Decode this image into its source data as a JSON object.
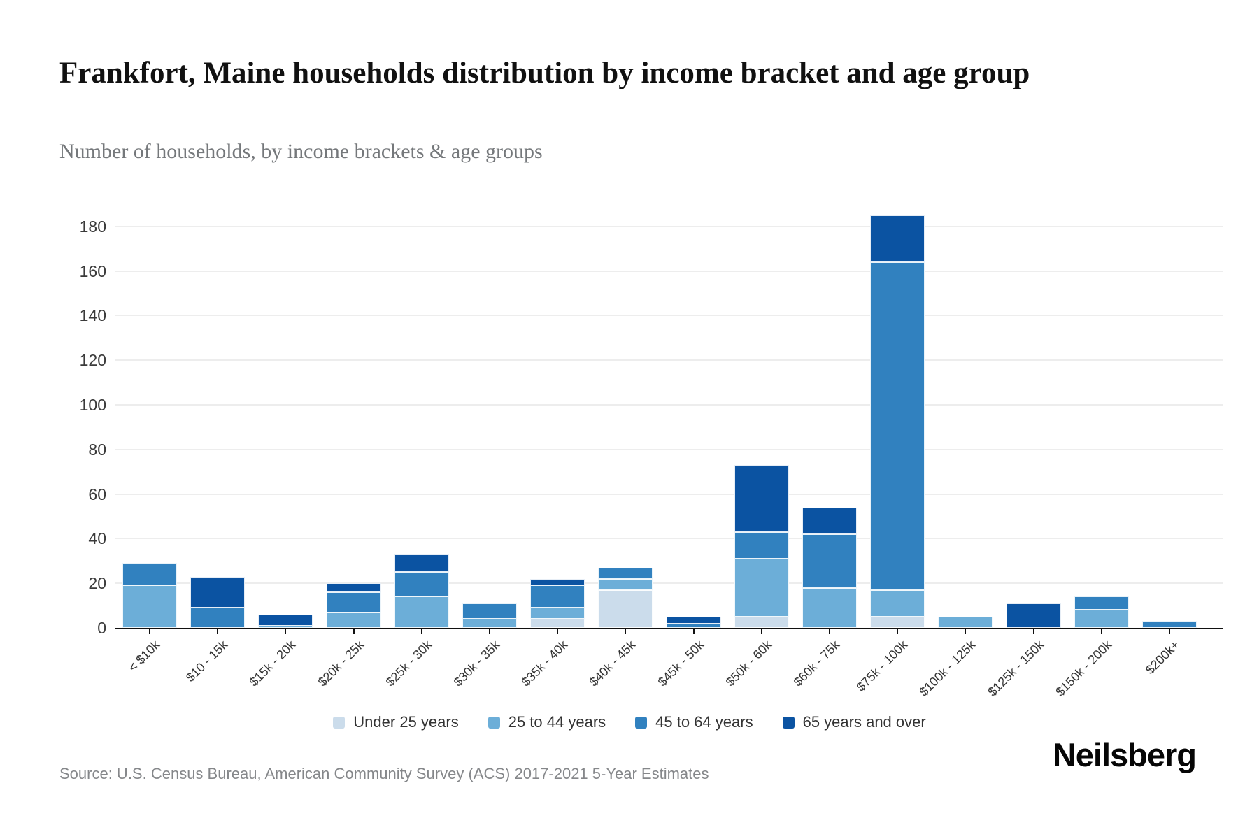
{
  "header": {
    "title": "Frankfort, Maine households distribution by income bracket and age group",
    "subtitle": "Number of households, by income brackets & age groups"
  },
  "chart_data": {
    "type": "bar",
    "stacked": true,
    "title": "Frankfort, Maine households distribution by income bracket and age group",
    "ylabel": "Number of households",
    "xlabel": "Income bracket",
    "ylim": [
      0,
      190
    ],
    "yticks": [
      0,
      20,
      40,
      60,
      80,
      100,
      120,
      140,
      160,
      180
    ],
    "grid": true,
    "legend_position": "bottom",
    "categories": [
      "< $10k",
      "$10 - 15k",
      "$15k - 20k",
      "$20k - 25k",
      "$25k - 30k",
      "$30k - 35k",
      "$35k - 40k",
      "$40k - 45k",
      "$45k - 50k",
      "$50k - 60k",
      "$60k - 75k",
      "$75k - 100k",
      "$100k - 125k",
      "$125k - 150k",
      "$150k - 200k",
      "$200k+"
    ],
    "series": [
      {
        "name": "Under 25 years",
        "color": "#cbdceb",
        "values": [
          0,
          0,
          0,
          0,
          0,
          0,
          4,
          17,
          0,
          5,
          0,
          5,
          0,
          0,
          0,
          0
        ]
      },
      {
        "name": "25 to 44 years",
        "color": "#6caed8",
        "values": [
          19,
          0,
          1,
          7,
          14,
          4,
          5,
          5,
          0,
          26,
          18,
          12,
          5,
          0,
          8,
          0
        ]
      },
      {
        "name": "45 to 64 years",
        "color": "#3181bf",
        "values": [
          10,
          9,
          0,
          9,
          11,
          7,
          10,
          5,
          2,
          12,
          24,
          147,
          0,
          0,
          6,
          3
        ]
      },
      {
        "name": "65 years and over",
        "color": "#0b53a2",
        "values": [
          0,
          14,
          5,
          4,
          8,
          0,
          3,
          0,
          3,
          30,
          12,
          21,
          0,
          11,
          0,
          0
        ]
      }
    ],
    "totals": [
      29,
      23,
      6,
      20,
      33,
      11,
      22,
      27,
      5,
      73,
      54,
      185,
      5,
      11,
      14,
      3
    ]
  },
  "footer": {
    "source": "Source: U.S. Census Bureau, American Community Survey (ACS) 2017-2021 5-Year Estimates",
    "logo": "Neilsberg"
  }
}
